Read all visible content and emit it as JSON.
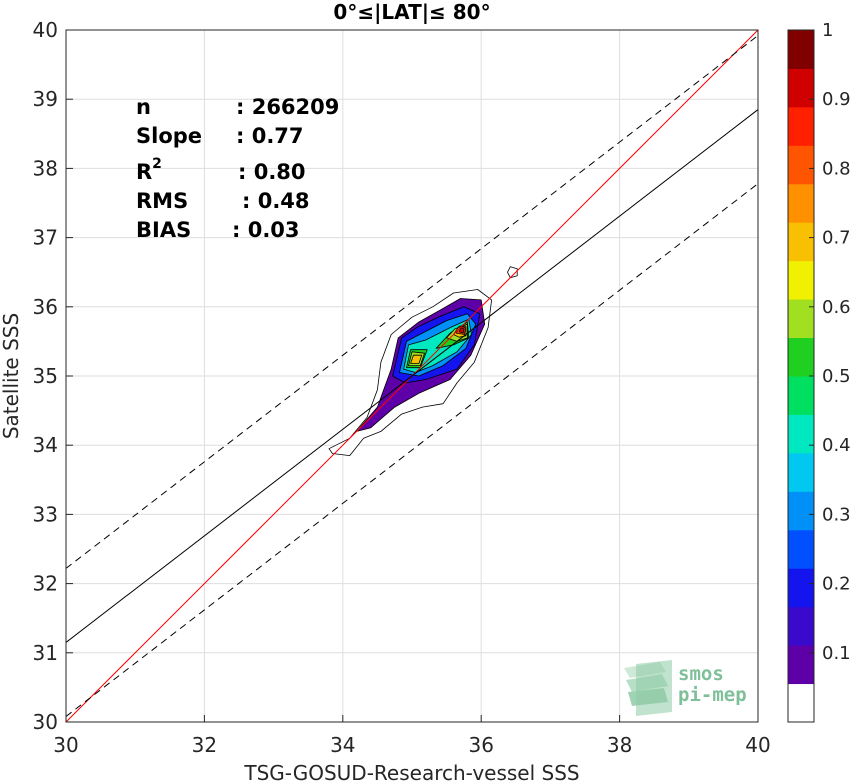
{
  "chart_data": {
    "type": "contour-density",
    "title": "0°≤|LAT|≤ 80°",
    "xlabel": "TSG-GOSUD-Research-vessel SSS",
    "ylabel": "Satellite SSS",
    "xlim": [
      30,
      40
    ],
    "ylim": [
      30,
      40
    ],
    "xticks": [
      "30",
      "32",
      "34",
      "36",
      "38",
      "40"
    ],
    "yticks": [
      "30",
      "31",
      "32",
      "33",
      "34",
      "35",
      "36",
      "37",
      "38",
      "39",
      "40"
    ],
    "grid": true,
    "stats": [
      {
        "label": "n",
        "value": ": 266209"
      },
      {
        "label": "Slope",
        "value": ": 0.77"
      },
      {
        "label": "R",
        "sup": "2",
        "value": ": 0.80"
      },
      {
        "label": "RMS",
        "value": ": 0.48"
      },
      {
        "label": "BIAS",
        "value": ": 0.03"
      }
    ],
    "lines": [
      {
        "name": "identity",
        "color": "#ff0000",
        "style": "solid",
        "points": [
          [
            30,
            30
          ],
          [
            40,
            40
          ]
        ]
      },
      {
        "name": "regression",
        "color": "#000000",
        "style": "solid",
        "points": [
          [
            30,
            31.15
          ],
          [
            40,
            38.85
          ]
        ]
      },
      {
        "name": "upper-bound",
        "color": "#000000",
        "style": "dashed",
        "points": [
          [
            30,
            32.22
          ],
          [
            40,
            39.92
          ]
        ]
      },
      {
        "name": "lower-bound",
        "color": "#000000",
        "style": "dashed",
        "points": [
          [
            30,
            30.08
          ],
          [
            40,
            37.78
          ]
        ]
      }
    ],
    "density_contours": [
      {
        "level": 0.05,
        "polygons": [
          [
            [
              33.8,
              33.95
            ],
            [
              34.1,
              34.1
            ],
            [
              34.35,
              34.4
            ],
            [
              34.5,
              34.8
            ],
            [
              34.55,
              35.2
            ],
            [
              34.7,
              35.6
            ],
            [
              35.0,
              35.85
            ],
            [
              35.3,
              36.0
            ],
            [
              35.6,
              36.2
            ],
            [
              35.95,
              36.25
            ],
            [
              36.15,
              36.1
            ],
            [
              36.1,
              35.7
            ],
            [
              35.9,
              35.2
            ],
            [
              35.65,
              34.9
            ],
            [
              35.45,
              34.6
            ],
            [
              35.15,
              34.55
            ],
            [
              34.85,
              34.45
            ],
            [
              34.55,
              34.2
            ],
            [
              34.3,
              34.1
            ],
            [
              34.1,
              33.85
            ],
            [
              33.85,
              33.88
            ]
          ],
          [
            [
              36.42,
              36.42
            ],
            [
              36.52,
              36.45
            ],
            [
              36.52,
              36.55
            ],
            [
              36.42,
              36.58
            ],
            [
              36.38,
              36.5
            ]
          ]
        ]
      },
      {
        "level": 0.1,
        "polygons": [
          [
            [
              34.2,
              34.2
            ],
            [
              34.5,
              34.55
            ],
            [
              34.7,
              35.1
            ],
            [
              34.8,
              35.55
            ],
            [
              35.1,
              35.78
            ],
            [
              35.4,
              35.95
            ],
            [
              35.7,
              36.12
            ],
            [
              36.0,
              36.1
            ],
            [
              36.05,
              35.75
            ],
            [
              35.85,
              35.3
            ],
            [
              35.55,
              34.95
            ],
            [
              35.1,
              34.75
            ],
            [
              34.75,
              34.55
            ],
            [
              34.4,
              34.25
            ]
          ]
        ]
      },
      {
        "level": 0.2,
        "polygons": [
          [
            [
              34.72,
              35.0
            ],
            [
              34.85,
              35.55
            ],
            [
              35.1,
              35.72
            ],
            [
              35.45,
              35.88
            ],
            [
              35.75,
              36.0
            ],
            [
              35.98,
              35.9
            ],
            [
              35.9,
              35.45
            ],
            [
              35.65,
              35.1
            ],
            [
              35.2,
              34.95
            ],
            [
              34.9,
              34.9
            ]
          ]
        ]
      },
      {
        "level": 0.3,
        "polygons": [
          [
            [
              34.82,
              35.05
            ],
            [
              34.92,
              35.5
            ],
            [
              35.15,
              35.62
            ],
            [
              35.5,
              35.8
            ],
            [
              35.8,
              35.9
            ],
            [
              35.92,
              35.75
            ],
            [
              35.78,
              35.4
            ],
            [
              35.45,
              35.15
            ],
            [
              35.1,
              35.0
            ]
          ]
        ]
      },
      {
        "level": 0.4,
        "polygons": [
          [
            [
              34.88,
              35.1
            ],
            [
              34.95,
              35.45
            ],
            [
              35.2,
              35.52
            ],
            [
              35.55,
              35.7
            ],
            [
              35.82,
              35.82
            ],
            [
              35.86,
              35.6
            ],
            [
              35.65,
              35.35
            ],
            [
              35.3,
              35.15
            ],
            [
              35.05,
              35.05
            ]
          ]
        ]
      },
      {
        "level": 0.5,
        "polygons": [
          [
            [
              34.92,
              35.12
            ],
            [
              34.98,
              35.38
            ],
            [
              35.22,
              35.38
            ],
            [
              35.12,
              35.12
            ]
          ],
          [
            [
              35.35,
              35.4
            ],
            [
              35.55,
              35.62
            ],
            [
              35.8,
              35.78
            ],
            [
              35.82,
              35.55
            ],
            [
              35.6,
              35.45
            ]
          ]
        ]
      },
      {
        "level": 0.6,
        "polygons": [
          [
            [
              34.95,
              35.15
            ],
            [
              35.0,
              35.35
            ],
            [
              35.18,
              35.33
            ],
            [
              35.12,
              35.15
            ]
          ],
          [
            [
              35.5,
              35.55
            ],
            [
              35.62,
              35.68
            ],
            [
              35.8,
              35.75
            ],
            [
              35.8,
              35.55
            ],
            [
              35.65,
              35.5
            ]
          ]
        ]
      },
      {
        "level": 0.7,
        "polygons": [
          [
            [
              34.98,
              35.18
            ],
            [
              35.02,
              35.3
            ],
            [
              35.14,
              35.3
            ],
            [
              35.1,
              35.18
            ]
          ],
          [
            [
              35.6,
              35.6
            ],
            [
              35.68,
              35.72
            ],
            [
              35.78,
              35.72
            ],
            [
              35.78,
              35.58
            ],
            [
              35.68,
              35.56
            ]
          ]
        ]
      },
      {
        "level": 0.8,
        "polygons": [
          [
            [
              35.64,
              35.62
            ],
            [
              35.7,
              35.72
            ],
            [
              35.77,
              35.7
            ],
            [
              35.76,
              35.6
            ]
          ]
        ]
      },
      {
        "level": 0.9,
        "polygons": [
          [
            [
              35.68,
              35.64
            ],
            [
              35.71,
              35.7
            ],
            [
              35.75,
              35.68
            ],
            [
              35.74,
              35.62
            ]
          ]
        ]
      }
    ],
    "colorbar": {
      "range": [
        0,
        1
      ],
      "ticks": [
        "0.1",
        "0.2",
        "0.3",
        "0.4",
        "0.5",
        "0.6",
        "0.7",
        "0.8",
        "0.9",
        "1"
      ],
      "colors": [
        "#ffffff",
        "#5d00a8",
        "#3a0acc",
        "#1414ee",
        "#0050ff",
        "#0090f8",
        "#00c8f0",
        "#00e8c0",
        "#00e060",
        "#20d020",
        "#a0e020",
        "#f0f000",
        "#f8c000",
        "#ff9000",
        "#ff5500",
        "#ff2000",
        "#d00000",
        "#800000"
      ]
    },
    "logo_text": [
      "smos",
      "pi-mep"
    ]
  }
}
